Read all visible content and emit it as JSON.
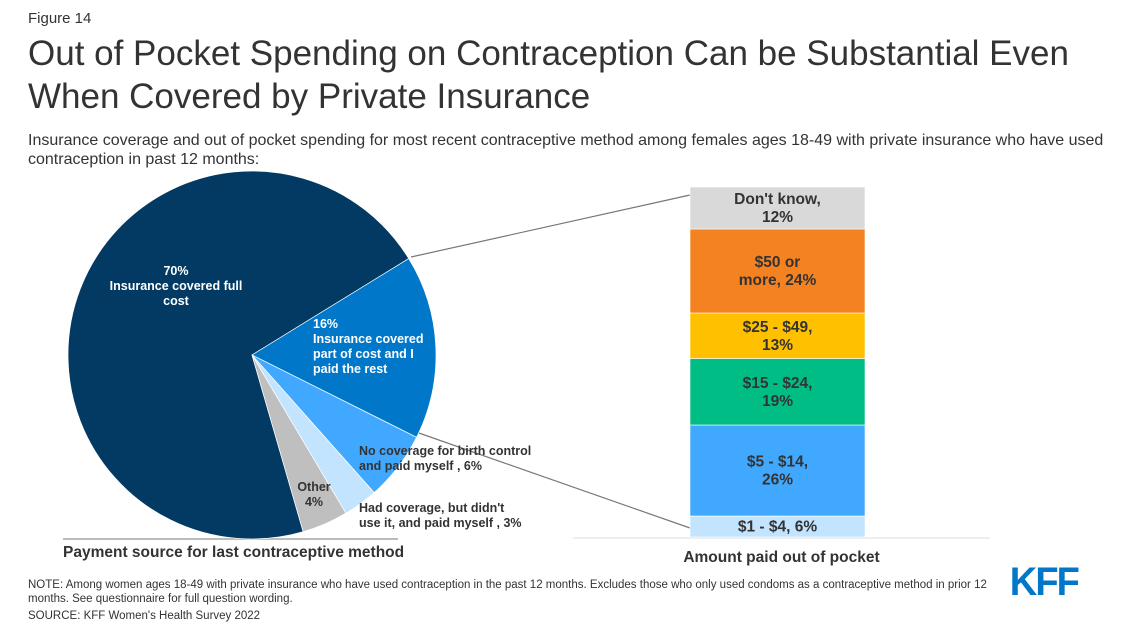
{
  "figure_label": "Figure 14",
  "title": "Out of Pocket Spending on Contraception Can be Substantial Even When Covered by Private Insurance",
  "subtitle": "Insurance coverage and out of pocket spending for most recent contraceptive method among females ages 18-49 with private insurance who have used contraception in past 12 months:",
  "note": "NOTE: Among women ages 18-49 with private insurance who have used contraception in the past 12 months. Excludes those who only used condoms as a contraceptive method in prior 12 months. See questionnaire for full question wording.",
  "source": "SOURCE: KFF Women's Health Survey 2022",
  "logo": "KFF",
  "chart_data": [
    {
      "type": "pie",
      "xlabel": "Payment source for last contraceptive method",
      "slices": [
        {
          "label": "Insurance covered full cost",
          "value": 70,
          "display": [
            "70%",
            "Insurance covered full",
            "cost"
          ],
          "color": "#033a63"
        },
        {
          "label": "Insurance covered part of cost and I paid the rest",
          "value": 16,
          "display": [
            "16%",
            "Insurance covered",
            "part of cost and I",
            "paid the rest"
          ],
          "color": "#0077c8"
        },
        {
          "label": "No coverage for birth control and paid myself",
          "value": 6,
          "display": [
            "No coverage for birth control",
            "and paid myself  , 6%"
          ],
          "color": "#40a9ff"
        },
        {
          "label": "Had coverage, but didn't use it, and paid myself",
          "value": 3,
          "display": [
            "Had coverage, but didn't",
            "use it, and paid myself , 3%"
          ],
          "color": "#c2e4ff"
        },
        {
          "label": "Other",
          "value": 4,
          "display": [
            "Other",
            "4%"
          ],
          "color": "#bfbfbf"
        }
      ]
    },
    {
      "type": "bar",
      "stacked": true,
      "xlabel": "Amount paid out of pocket",
      "segments": [
        {
          "label": "$1 - $4",
          "value": 6,
          "display": [
            "$1 - $4, 6%"
          ],
          "color": "#c2e4ff"
        },
        {
          "label": "$5 - $14",
          "value": 26,
          "display": [
            "$5 - $14,",
            "26%"
          ],
          "color": "#40a9ff"
        },
        {
          "label": "$15 - $24",
          "value": 19,
          "display": [
            "$15 - $24,",
            "19%"
          ],
          "color": "#00bd86"
        },
        {
          "label": "$25 - $49",
          "value": 13,
          "display": [
            "$25 - $49,",
            "13%"
          ],
          "color": "#ffc000"
        },
        {
          "label": "$50 or more",
          "value": 24,
          "display": [
            "$50 or",
            "more, 24%"
          ],
          "color": "#f58220"
        },
        {
          "label": "Don't know",
          "value": 12,
          "display": [
            "Don't know,",
            "12%"
          ],
          "color": "#d9d9d9"
        }
      ]
    }
  ]
}
